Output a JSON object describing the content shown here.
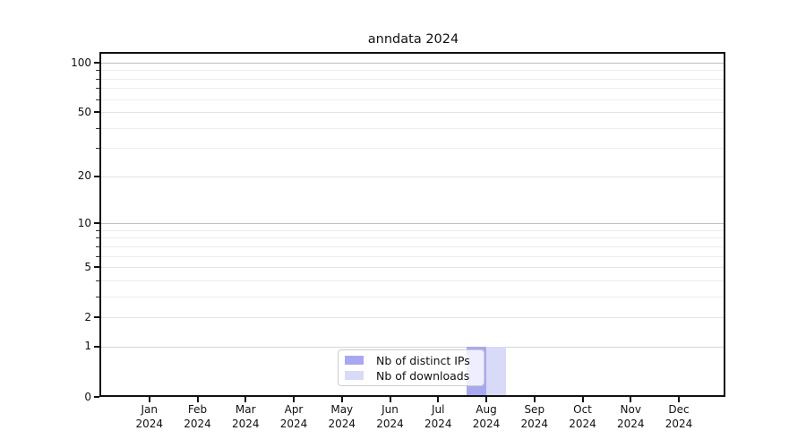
{
  "title": "anndata 2024",
  "chart_data": {
    "type": "bar",
    "title": "anndata 2024",
    "categories": [
      "Jan",
      "Feb",
      "Mar",
      "Apr",
      "May",
      "Jun",
      "Jul",
      "Aug",
      "Sep",
      "Oct",
      "Nov",
      "Dec"
    ],
    "year": "2024",
    "series": [
      {
        "name": "Nb of distinct IPs",
        "color": "#a8a8f0",
        "values": [
          0,
          0,
          0,
          0,
          0,
          0,
          0,
          1,
          0,
          0,
          0,
          0
        ]
      },
      {
        "name": "Nb of downloads",
        "color": "#d9d9f8",
        "values": [
          0,
          0,
          0,
          0,
          0,
          0,
          0,
          1,
          0,
          0,
          0,
          0
        ]
      }
    ],
    "xlabel": "",
    "ylabel": "",
    "yscale": "log1p",
    "ylim": [
      0,
      113
    ],
    "yticks": [
      0,
      1,
      2,
      5,
      10,
      20,
      50,
      100
    ],
    "yticks_minor": [
      3,
      4,
      6,
      7,
      8,
      9,
      30,
      40,
      60,
      70,
      80,
      90
    ],
    "grid": "horizontal",
    "legend_position": "bottom-center"
  },
  "legend": {
    "items": [
      {
        "label": "Nb of distinct IPs",
        "color": "#a8a8f0"
      },
      {
        "label": "Nb of downloads",
        "color": "#d9d9f8"
      }
    ]
  },
  "colors": {
    "grid_major": "#c0c0c0",
    "grid_one": "#d6d6d6",
    "grid_labeled_minor": "#e3e3e3",
    "grid_minor": "#ededed",
    "spine": "#111111",
    "background": "#ffffff"
  }
}
